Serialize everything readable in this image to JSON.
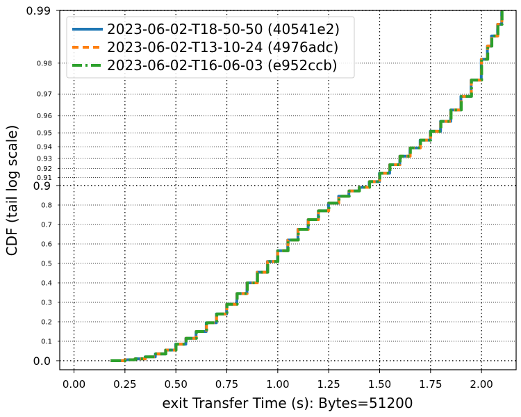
{
  "chart_data": {
    "type": "line",
    "xlabel": "exit Transfer Time (s): Bytes=51200",
    "ylabel": "CDF (tail log scale)",
    "xlim": [
      -0.07,
      2.17
    ],
    "x_ticks": [
      "0.00",
      "0.25",
      "0.50",
      "0.75",
      "1.00",
      "1.25",
      "1.50",
      "1.75",
      "2.00"
    ],
    "x_tick_values": [
      0,
      0.25,
      0.5,
      0.75,
      1.0,
      1.25,
      1.5,
      1.75,
      2.0
    ],
    "y_scale": "tail-log",
    "y_major_ticks": [
      "0.0",
      "0.9",
      "0.99"
    ],
    "y_major_values": [
      0.0,
      0.9,
      0.99
    ],
    "y_minor_ticks": [
      "0.1",
      "0.2",
      "0.3",
      "0.4",
      "0.5",
      "0.6",
      "0.7",
      "0.8",
      "0.91",
      "0.92",
      "0.93",
      "0.94",
      "0.95",
      "0.96",
      "0.97",
      "0.98"
    ],
    "y_minor_values": [
      0.1,
      0.2,
      0.3,
      0.4,
      0.5,
      0.6,
      0.7,
      0.8,
      0.91,
      0.92,
      0.93,
      0.94,
      0.95,
      0.96,
      0.97,
      0.98
    ],
    "grid": true,
    "legend_position": "top-left",
    "series": [
      {
        "name": "2023-06-02-T18-50-50 (40541e2)",
        "color": "#1f77b4",
        "dash": "solid"
      },
      {
        "name": "2023-06-02-T13-10-24 (4976adc)",
        "color": "#ff7f0e",
        "dash": "dashed"
      },
      {
        "name": "2023-06-02-T16-06-03 (e952ccb)",
        "color": "#2ca02c",
        "dash": "dashdot"
      }
    ],
    "points": {
      "x": [
        0.18,
        0.25,
        0.3,
        0.35,
        0.4,
        0.45,
        0.5,
        0.55,
        0.6,
        0.65,
        0.7,
        0.75,
        0.8,
        0.85,
        0.9,
        0.95,
        1.0,
        1.05,
        1.1,
        1.15,
        1.2,
        1.25,
        1.3,
        1.35,
        1.4,
        1.45,
        1.5,
        1.55,
        1.6,
        1.65,
        1.7,
        1.75,
        1.8,
        1.85,
        1.9,
        1.95,
        2.0,
        2.03,
        2.05,
        2.08,
        2.1
      ],
      "y": [
        0.0,
        0.005,
        0.01,
        0.02,
        0.035,
        0.055,
        0.085,
        0.115,
        0.15,
        0.195,
        0.24,
        0.29,
        0.345,
        0.4,
        0.455,
        0.51,
        0.565,
        0.62,
        0.675,
        0.725,
        0.77,
        0.81,
        0.845,
        0.872,
        0.891,
        0.905,
        0.915,
        0.924,
        0.932,
        0.939,
        0.945,
        0.951,
        0.957,
        0.963,
        0.969,
        0.975,
        0.981,
        0.984,
        0.986,
        0.988,
        0.99
      ]
    }
  }
}
